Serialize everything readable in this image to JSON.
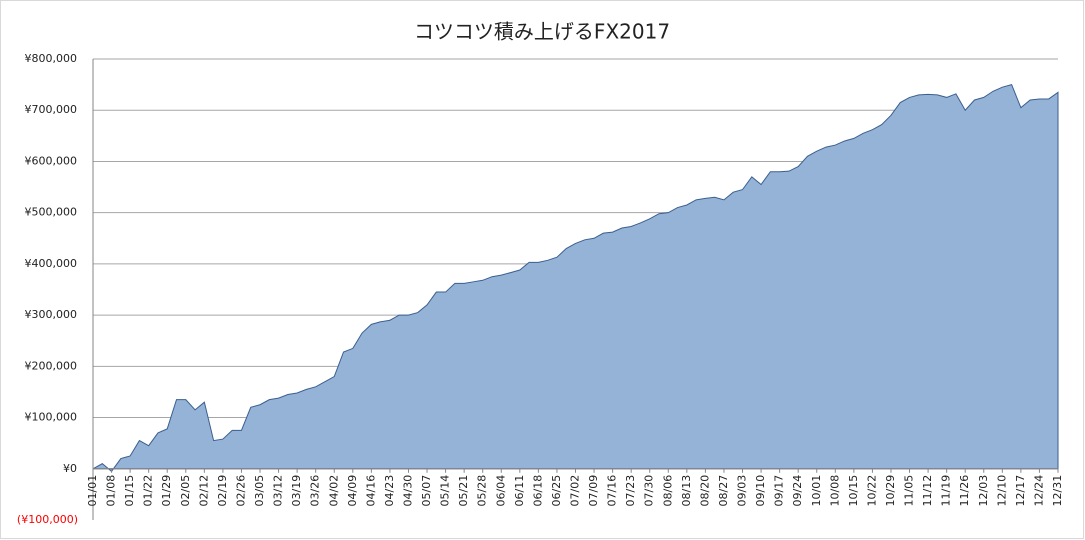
{
  "chart_data": {
    "type": "area",
    "title": "コツコツ積み上げるFX2017",
    "categories": [
      "01/01",
      null,
      "01/08",
      null,
      "01/15",
      null,
      "01/22",
      null,
      "01/29",
      null,
      "02/05",
      null,
      "02/12",
      null,
      "02/19",
      null,
      "02/26",
      null,
      "03/05",
      null,
      "03/12",
      null,
      "03/19",
      null,
      "03/26",
      null,
      "04/02",
      null,
      "04/09",
      null,
      "04/16",
      null,
      "04/23",
      null,
      "04/30",
      null,
      "05/07",
      null,
      "05/14",
      null,
      "05/21",
      null,
      "05/28",
      null,
      "06/04",
      null,
      "06/11",
      null,
      "06/18",
      null,
      "06/25",
      null,
      "07/02",
      null,
      "07/09",
      null,
      "07/16",
      null,
      "07/23",
      null,
      "07/30",
      null,
      "08/06",
      null,
      "08/13",
      null,
      "08/20",
      null,
      "08/27",
      null,
      "09/03",
      null,
      "09/10",
      null,
      "09/17",
      null,
      "09/24",
      null,
      "10/01",
      null,
      "10/08",
      null,
      "10/15",
      null,
      "10/22",
      null,
      "10/29",
      null,
      "11/05",
      null,
      "11/12",
      null,
      "11/19",
      null,
      "11/26",
      null,
      "12/03",
      null,
      "12/10",
      null,
      "12/17",
      null,
      "12/24",
      null,
      "12/31"
    ],
    "values": [
      0,
      10000,
      -5000,
      20000,
      25000,
      55000,
      45000,
      70000,
      78000,
      135000,
      135000,
      115000,
      130000,
      55000,
      58000,
      75000,
      75000,
      120000,
      125000,
      135000,
      138000,
      145000,
      148000,
      155000,
      160000,
      170000,
      180000,
      228000,
      235000,
      265000,
      282000,
      287000,
      290000,
      300000,
      300000,
      305000,
      320000,
      345000,
      345000,
      362000,
      362000,
      365000,
      368000,
      375000,
      378000,
      383000,
      388000,
      403000,
      403000,
      407000,
      413000,
      430000,
      440000,
      447000,
      450000,
      460000,
      462000,
      470000,
      473000,
      480000,
      488000,
      498000,
      500000,
      510000,
      515000,
      525000,
      528000,
      530000,
      525000,
      540000,
      545000,
      570000,
      555000,
      580000,
      580000,
      581000,
      590000,
      610000,
      620000,
      628000,
      632000,
      640000,
      645000,
      655000,
      662000,
      672000,
      690000,
      715000,
      725000,
      730000,
      731000,
      730000,
      725000,
      732000,
      700000,
      720000,
      725000,
      737000,
      745000,
      750000,
      705000,
      720000,
      722000,
      722000,
      735000
    ],
    "color": "#95b3d7",
    "line_color": "#3b5f8f",
    "ylim": [
      -100000,
      800000
    ],
    "yticks": [
      {
        "value": -100000,
        "label": "(¥100,000)"
      },
      {
        "value": 0,
        "label": "¥0"
      },
      {
        "value": 100000,
        "label": "¥100,000"
      },
      {
        "value": 200000,
        "label": "¥200,000"
      },
      {
        "value": 300000,
        "label": "¥300,000"
      },
      {
        "value": 400000,
        "label": "¥400,000"
      },
      {
        "value": 500000,
        "label": "¥500,000"
      },
      {
        "value": 600000,
        "label": "¥600,000"
      },
      {
        "value": 700000,
        "label": "¥700,000"
      },
      {
        "value": 800000,
        "label": "¥800,000"
      }
    ],
    "negative_label_color": "#ff0000",
    "grid": true
  }
}
